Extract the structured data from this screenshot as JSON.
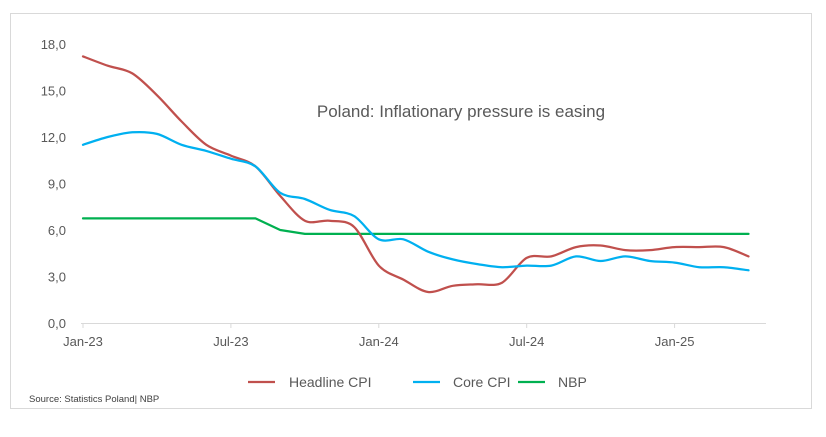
{
  "chart_data": {
    "type": "line",
    "title": "Poland: Inflationary pressure is easing",
    "source": "Source: Statistics Poland| NBP",
    "xlabel": "",
    "ylabel": "",
    "ylim": [
      0,
      18
    ],
    "yticks": [
      "0,0",
      "3,0",
      "6,0",
      "9,0",
      "12,0",
      "15,0",
      "18,0"
    ],
    "ytick_values": [
      0,
      3,
      6,
      9,
      12,
      15,
      18
    ],
    "xticks": [
      "Jan-23",
      "Jul-23",
      "Jan-24",
      "Jul-24",
      "Jan-25"
    ],
    "xtick_index": [
      0,
      6,
      12,
      18,
      24
    ],
    "grid": false,
    "legend_position": "bottom",
    "x": [
      "Jan-23",
      "Feb-23",
      "Mar-23",
      "Apr-23",
      "May-23",
      "Jun-23",
      "Jul-23",
      "Aug-23",
      "Sep-23",
      "Oct-23",
      "Nov-23",
      "Dec-23",
      "Jan-24",
      "Feb-24",
      "Mar-24",
      "Apr-24",
      "May-24",
      "Jun-24",
      "Jul-24",
      "Aug-24",
      "Sep-24",
      "Oct-24",
      "Nov-24",
      "Dec-24",
      "Jan-25",
      "Feb-25",
      "Mar-25",
      "Apr-25"
    ],
    "series": [
      {
        "name": "Headline CPI",
        "color": "#c0504d",
        "values": [
          17.2,
          16.6,
          16.1,
          14.7,
          13.0,
          11.5,
          10.8,
          10.1,
          8.2,
          6.6,
          6.6,
          6.2,
          3.7,
          2.8,
          2.0,
          2.4,
          2.5,
          2.6,
          4.2,
          4.3,
          4.9,
          5.0,
          4.7,
          4.7,
          4.9,
          4.9,
          4.9,
          4.3
        ]
      },
      {
        "name": "Core CPI",
        "color": "#00b0f0",
        "values": [
          11.5,
          12.0,
          12.3,
          12.2,
          11.5,
          11.1,
          10.6,
          10.1,
          8.4,
          8.0,
          7.3,
          6.9,
          5.4,
          5.4,
          4.6,
          4.1,
          3.8,
          3.6,
          3.7,
          3.7,
          4.3,
          4.0,
          4.3,
          4.0,
          3.9,
          3.6,
          3.6,
          3.4
        ]
      },
      {
        "name": "NBP",
        "color": "#00b050",
        "values": [
          6.75,
          6.75,
          6.75,
          6.75,
          6.75,
          6.75,
          6.75,
          6.75,
          6.0,
          5.75,
          5.75,
          5.75,
          5.75,
          5.75,
          5.75,
          5.75,
          5.75,
          5.75,
          5.75,
          5.75,
          5.75,
          5.75,
          5.75,
          5.75,
          5.75,
          5.75,
          5.75,
          5.75
        ]
      }
    ]
  }
}
